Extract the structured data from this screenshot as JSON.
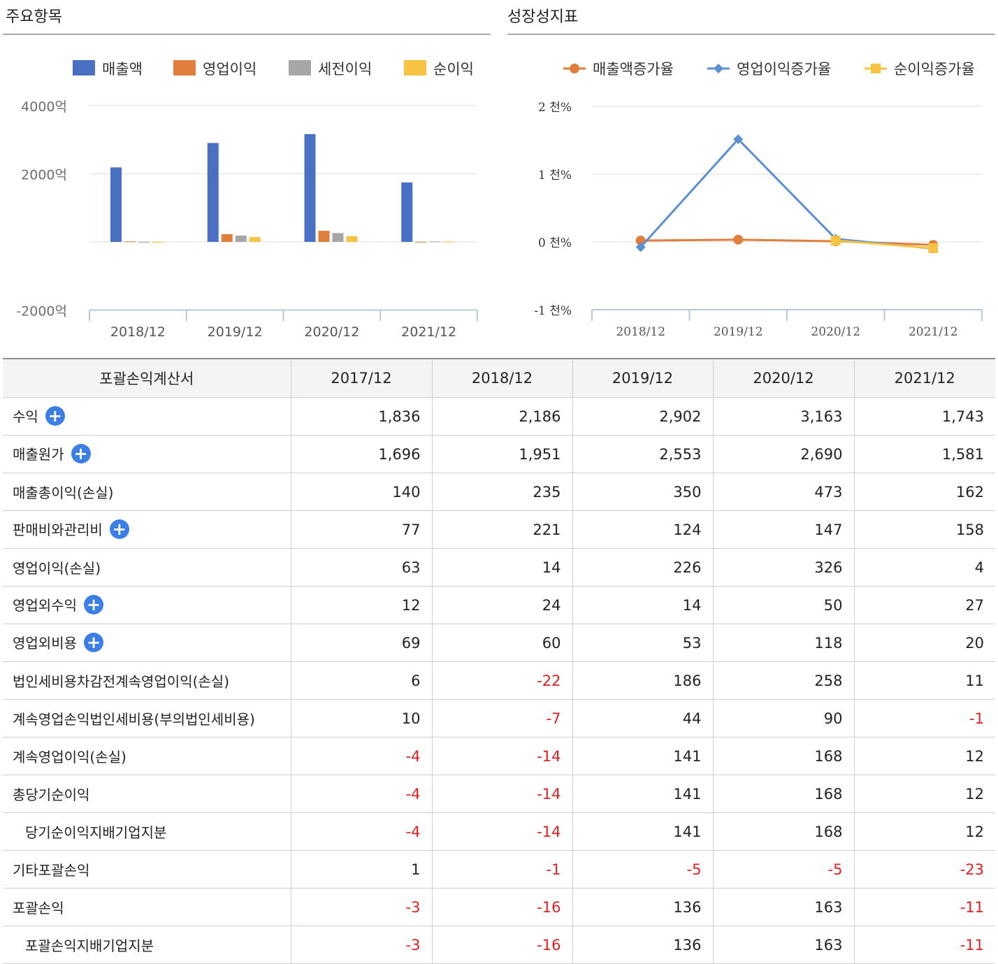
{
  "left_panel": {
    "title": "주요항목"
  },
  "right_panel": {
    "title": "성장성지표"
  },
  "chart_data": [
    {
      "type": "bar",
      "categories": [
        "2018/12",
        "2019/12",
        "2020/12",
        "2021/12"
      ],
      "series": [
        {
          "name": "매출액",
          "color": "#4a70c4",
          "values": [
            2186,
            2902,
            3163,
            1743
          ]
        },
        {
          "name": "영업이익",
          "color": "#e07e3c",
          "values": [
            14,
            226,
            326,
            4
          ]
        },
        {
          "name": "세전이익",
          "color": "#a6a6a6",
          "values": [
            -22,
            186,
            258,
            11
          ]
        },
        {
          "name": "순이익",
          "color": "#f6c342",
          "values": [
            -14,
            141,
            168,
            12
          ]
        }
      ],
      "y_ticks": [
        4000,
        2000,
        0,
        -2000
      ],
      "y_tick_labels": [
        "4000억",
        "2000억",
        "",
        "-2000억"
      ],
      "ylim": [
        -2000,
        4000
      ],
      "grid": true,
      "legend": "top"
    },
    {
      "type": "line",
      "categories": [
        "2018/12",
        "2019/12",
        "2020/12",
        "2021/12"
      ],
      "series": [
        {
          "name": "매출액증가율",
          "color": "#e07e3c",
          "marker": "circle",
          "values": [
            19.1,
            32.7,
            9.0,
            -44.9
          ]
        },
        {
          "name": "영업이익증가율",
          "color": "#5b8fd0",
          "marker": "diamond",
          "values": [
            -77.8,
            1514.3,
            44.2,
            -98.8
          ]
        },
        {
          "name": "순이익증가율",
          "color": "#f6c342",
          "marker": "square",
          "values": [
            null,
            null,
            19.1,
            -92.9
          ]
        }
      ],
      "y_ticks": [
        2000,
        1000,
        0,
        -1000
      ],
      "y_tick_labels": [
        "2 천%",
        "1 천%",
        "0 천%",
        "-1 천%"
      ],
      "ylim": [
        -1000,
        2000
      ],
      "grid": true,
      "legend": "top"
    },
    {
      "type": "table",
      "headers": [
        "포괄손익계산서",
        "2017/12",
        "2018/12",
        "2019/12",
        "2020/12",
        "2021/12"
      ],
      "rows": [
        {
          "label": "수익",
          "expand": true,
          "sub": false,
          "values": [
            "1,836",
            "2,186",
            "2,902",
            "3,163",
            "1,743"
          ]
        },
        {
          "label": "매출원가",
          "expand": true,
          "sub": false,
          "values": [
            "1,696",
            "1,951",
            "2,553",
            "2,690",
            "1,581"
          ]
        },
        {
          "label": "매출총이익(손실)",
          "expand": false,
          "sub": false,
          "values": [
            "140",
            "235",
            "350",
            "473",
            "162"
          ]
        },
        {
          "label": "판매비와관리비",
          "expand": true,
          "sub": false,
          "values": [
            "77",
            "221",
            "124",
            "147",
            "158"
          ]
        },
        {
          "label": "영업이익(손실)",
          "expand": false,
          "sub": false,
          "values": [
            "63",
            "14",
            "226",
            "326",
            "4"
          ]
        },
        {
          "label": "영업외수익",
          "expand": true,
          "sub": false,
          "values": [
            "12",
            "24",
            "14",
            "50",
            "27"
          ]
        },
        {
          "label": "영업외비용",
          "expand": true,
          "sub": false,
          "values": [
            "69",
            "60",
            "53",
            "118",
            "20"
          ]
        },
        {
          "label": "법인세비용차감전계속영업이익(손실)",
          "expand": false,
          "sub": false,
          "values": [
            "6",
            "-22",
            "186",
            "258",
            "11"
          ]
        },
        {
          "label": "계속영업손익법인세비용(부의법인세비용)",
          "expand": false,
          "sub": false,
          "values": [
            "10",
            "-7",
            "44",
            "90",
            "-1"
          ]
        },
        {
          "label": "계속영업이익(손실)",
          "expand": false,
          "sub": false,
          "values": [
            "-4",
            "-14",
            "141",
            "168",
            "12"
          ]
        },
        {
          "label": "총당기순이익",
          "expand": false,
          "sub": false,
          "values": [
            "-4",
            "-14",
            "141",
            "168",
            "12"
          ]
        },
        {
          "label": "당기순이익지배기업지분",
          "expand": false,
          "sub": true,
          "values": [
            "-4",
            "-14",
            "141",
            "168",
            "12"
          ]
        },
        {
          "label": "기타포괄손익",
          "expand": false,
          "sub": false,
          "values": [
            "1",
            "-1",
            "-5",
            "-5",
            "-23"
          ]
        },
        {
          "label": "포괄손익",
          "expand": false,
          "sub": false,
          "values": [
            "-3",
            "-16",
            "136",
            "163",
            "-11"
          ]
        },
        {
          "label": "포괄손익지배기업지분",
          "expand": false,
          "sub": true,
          "values": [
            "-3",
            "-16",
            "136",
            "163",
            "-11"
          ]
        }
      ]
    }
  ]
}
